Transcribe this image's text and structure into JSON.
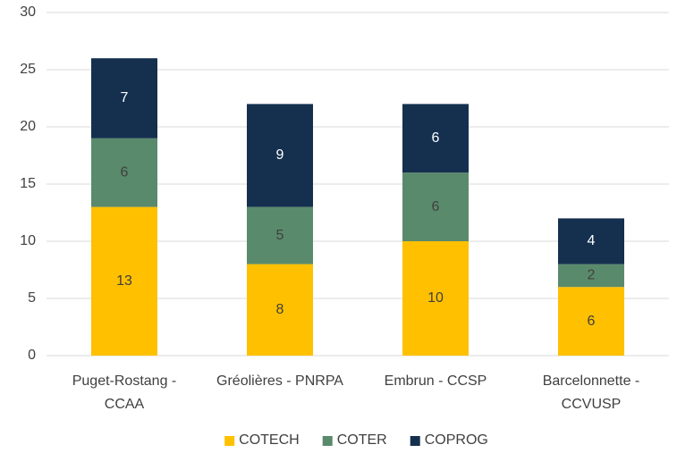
{
  "chart_data": {
    "type": "stacked_bar",
    "categories": [
      "Puget-Rostang - CCAA",
      "Gréolières - PNRPA",
      "Embrun - CCSP",
      "Barcelonnette - CCVUSP"
    ],
    "series": [
      {
        "name": "COTECH",
        "color": "#ffc000",
        "values": [
          13,
          8,
          10,
          6
        ]
      },
      {
        "name": "COTER",
        "color": "#5a8a6c",
        "values": [
          6,
          5,
          6,
          2
        ]
      },
      {
        "name": "COPROG",
        "color": "#15304f",
        "values": [
          7,
          9,
          6,
          4
        ]
      }
    ],
    "ylim": [
      0,
      30
    ],
    "yticks": [
      0,
      5,
      10,
      15,
      20,
      25,
      30
    ],
    "grid": true,
    "legend": "bottom"
  }
}
